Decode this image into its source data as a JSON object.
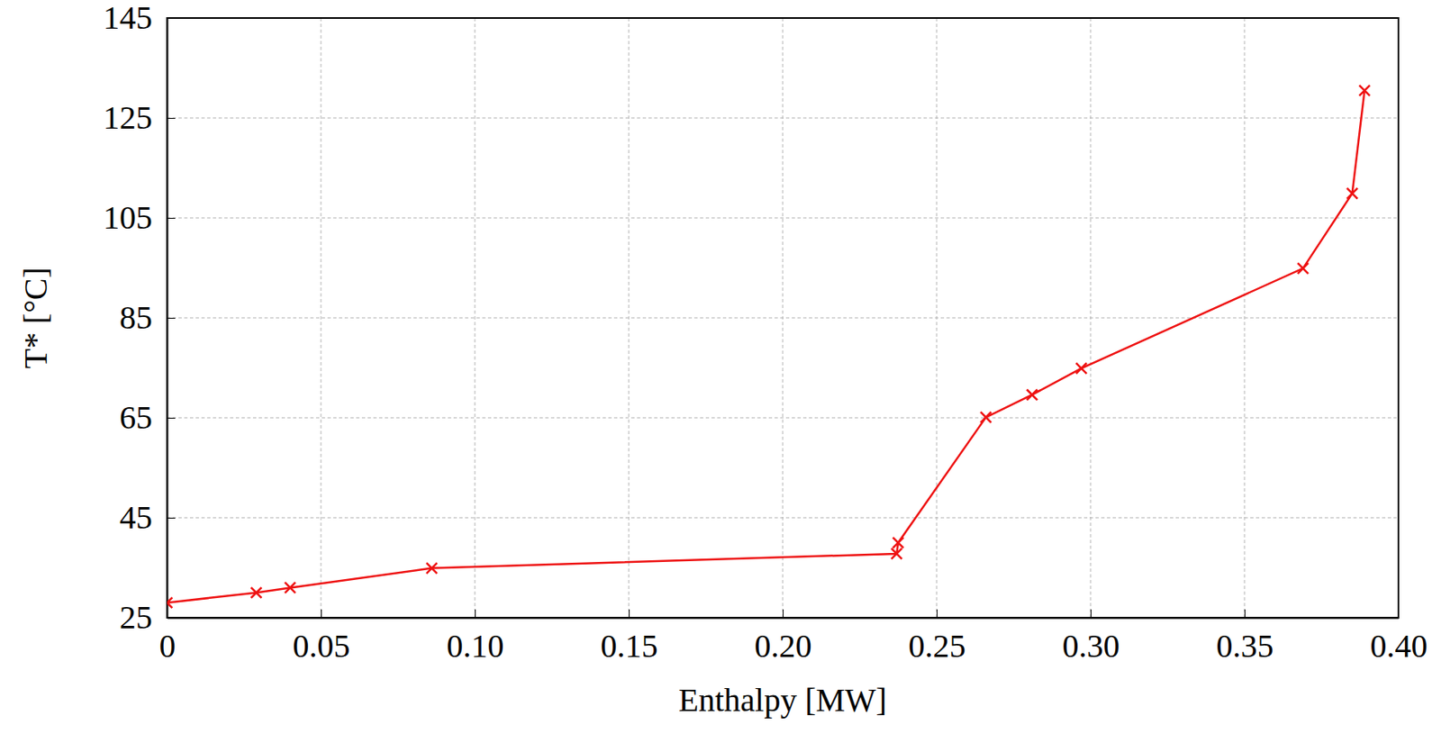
{
  "chart_data": {
    "type": "line",
    "x_label": "Enthalpy [MW]",
    "y_label": "T* [°C]",
    "x": [
      0,
      0.029,
      0.04,
      0.086,
      0.237,
      0.2375,
      0.266,
      0.281,
      0.297,
      0.369,
      0.385,
      0.389
    ],
    "values": [
      28,
      30,
      31,
      34.9,
      37.8,
      40,
      65.1,
      69.6,
      74.9,
      94.9,
      109.9,
      130.5
    ],
    "color": "#ee1111",
    "marker": "x",
    "line_style": "solid",
    "xlim": [
      0,
      0.4
    ],
    "xticks": [
      0,
      0.05,
      {
        "value": 0.1,
        "label": "0.10"
      },
      0.15,
      {
        "value": 0.2,
        "label": "0.20"
      },
      0.25,
      {
        "value": 0.3,
        "label": "0.30"
      },
      0.35,
      {
        "value": 0.4,
        "label": "0.40"
      }
    ],
    "ylim": [
      25,
      145
    ],
    "yticks": [
      25,
      45,
      65,
      85,
      105,
      125,
      145
    ],
    "grid": true
  }
}
